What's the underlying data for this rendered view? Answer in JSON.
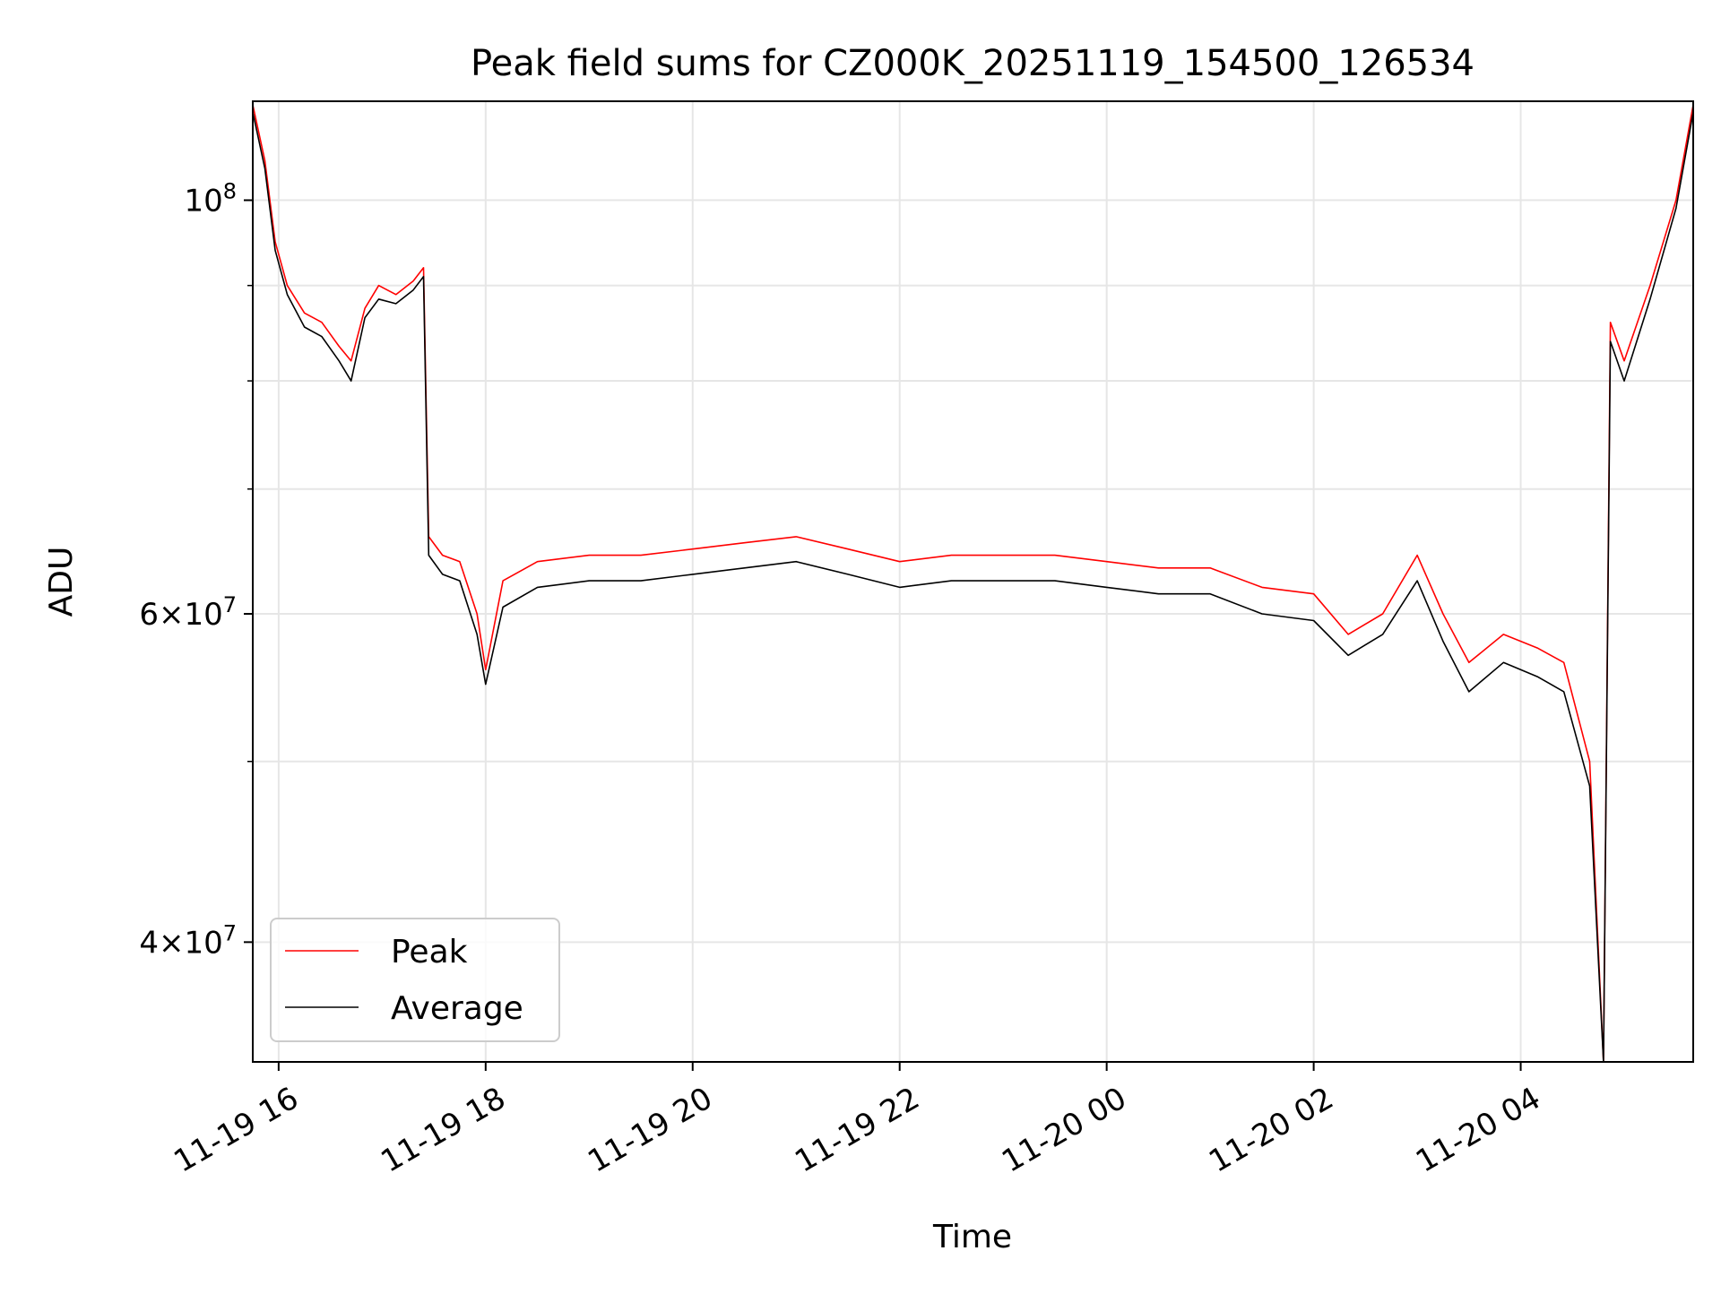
{
  "chart_data": {
    "type": "line",
    "title": "Peak field sums for CZ000K_20251119_154500_126534",
    "xlabel": "Time",
    "ylabel": "ADU",
    "x_axis": {
      "type": "datetime",
      "range": [
        "2025-11-19 15:45",
        "2025-11-20 05:40"
      ],
      "ticks": [
        {
          "value": "2025-11-19 16:00",
          "label": "11-19 16"
        },
        {
          "value": "2025-11-19 18:00",
          "label": "11-19 18"
        },
        {
          "value": "2025-11-19 20:00",
          "label": "11-19 20"
        },
        {
          "value": "2025-11-19 22:00",
          "label": "11-19 22"
        },
        {
          "value": "2025-11-20 00:00",
          "label": "11-20 00"
        },
        {
          "value": "2025-11-20 02:00",
          "label": "11-20 02"
        },
        {
          "value": "2025-11-20 04:00",
          "label": "11-20 04"
        }
      ]
    },
    "y_axis": {
      "scale": "log",
      "range": [
        34500000,
        113000000
      ],
      "major_ticks": [
        {
          "value": 40000000,
          "mant": "4",
          "exp": "7"
        },
        {
          "value": 60000000,
          "mant": "6",
          "exp": "7"
        },
        {
          "value": 100000000,
          "base_exp": "8"
        }
      ],
      "minor_ticks": [
        50000000,
        70000000,
        80000000,
        90000000
      ]
    },
    "grid": true,
    "legend": {
      "position": "lower-left"
    },
    "series": [
      {
        "name": "Peak",
        "color": "#ff0000",
        "points": [
          [
            "2025-11-19 15:45",
            112500000
          ],
          [
            "2025-11-19 15:52",
            105000000
          ],
          [
            "2025-11-19 15:58",
            95000000
          ],
          [
            "2025-11-19 16:05",
            90000000
          ],
          [
            "2025-11-19 16:15",
            87000000
          ],
          [
            "2025-11-19 16:25",
            86000000
          ],
          [
            "2025-11-19 16:35",
            83500000
          ],
          [
            "2025-11-19 16:42",
            82000000
          ],
          [
            "2025-11-19 16:50",
            87500000
          ],
          [
            "2025-11-19 16:58",
            90000000
          ],
          [
            "2025-11-19 17:08",
            89000000
          ],
          [
            "2025-11-19 17:18",
            90500000
          ],
          [
            "2025-11-19 17:24",
            92000000
          ],
          [
            "2025-11-19 17:27",
            66000000
          ],
          [
            "2025-11-19 17:35",
            64500000
          ],
          [
            "2025-11-19 17:45",
            64000000
          ],
          [
            "2025-11-19 17:55",
            60000000
          ],
          [
            "2025-11-19 18:00",
            56000000
          ],
          [
            "2025-11-19 18:10",
            62500000
          ],
          [
            "2025-11-19 18:30",
            64000000
          ],
          [
            "2025-11-19 19:00",
            64500000
          ],
          [
            "2025-11-19 19:30",
            64500000
          ],
          [
            "2025-11-19 20:00",
            65000000
          ],
          [
            "2025-11-19 20:30",
            65500000
          ],
          [
            "2025-11-19 21:00",
            66000000
          ],
          [
            "2025-11-19 21:30",
            65000000
          ],
          [
            "2025-11-19 22:00",
            64000000
          ],
          [
            "2025-11-19 22:30",
            64500000
          ],
          [
            "2025-11-19 23:00",
            64500000
          ],
          [
            "2025-11-19 23:30",
            64500000
          ],
          [
            "2025-11-20 00:00",
            64000000
          ],
          [
            "2025-11-20 00:30",
            63500000
          ],
          [
            "2025-11-20 01:00",
            63500000
          ],
          [
            "2025-11-20 01:30",
            62000000
          ],
          [
            "2025-11-20 02:00",
            61500000
          ],
          [
            "2025-11-20 02:20",
            58500000
          ],
          [
            "2025-11-20 02:40",
            60000000
          ],
          [
            "2025-11-20 03:00",
            64500000
          ],
          [
            "2025-11-20 03:15",
            60000000
          ],
          [
            "2025-11-20 03:30",
            56500000
          ],
          [
            "2025-11-20 03:50",
            58500000
          ],
          [
            "2025-11-20 04:10",
            57500000
          ],
          [
            "2025-11-20 04:25",
            56500000
          ],
          [
            "2025-11-20 04:40",
            50000000
          ],
          [
            "2025-11-20 04:48",
            34500000
          ],
          [
            "2025-11-20 04:52",
            86000000
          ],
          [
            "2025-11-20 05:00",
            82000000
          ],
          [
            "2025-11-20 05:15",
            90000000
          ],
          [
            "2025-11-20 05:30",
            100000000
          ],
          [
            "2025-11-20 05:40",
            112500000
          ]
        ]
      },
      {
        "name": "Average",
        "color": "#000000",
        "points": [
          [
            "2025-11-19 15:45",
            111500000
          ],
          [
            "2025-11-19 15:52",
            104000000
          ],
          [
            "2025-11-19 15:58",
            94000000
          ],
          [
            "2025-11-19 16:05",
            89000000
          ],
          [
            "2025-11-19 16:15",
            85500000
          ],
          [
            "2025-11-19 16:25",
            84500000
          ],
          [
            "2025-11-19 16:35",
            82000000
          ],
          [
            "2025-11-19 16:42",
            80000000
          ],
          [
            "2025-11-19 16:50",
            86500000
          ],
          [
            "2025-11-19 16:58",
            88500000
          ],
          [
            "2025-11-19 17:08",
            88000000
          ],
          [
            "2025-11-19 17:18",
            89500000
          ],
          [
            "2025-11-19 17:24",
            91000000
          ],
          [
            "2025-11-19 17:27",
            64500000
          ],
          [
            "2025-11-19 17:35",
            63000000
          ],
          [
            "2025-11-19 17:45",
            62500000
          ],
          [
            "2025-11-19 17:55",
            58500000
          ],
          [
            "2025-11-19 18:00",
            55000000
          ],
          [
            "2025-11-19 18:10",
            60500000
          ],
          [
            "2025-11-19 18:30",
            62000000
          ],
          [
            "2025-11-19 19:00",
            62500000
          ],
          [
            "2025-11-19 19:30",
            62500000
          ],
          [
            "2025-11-19 20:00",
            63000000
          ],
          [
            "2025-11-19 20:30",
            63500000
          ],
          [
            "2025-11-19 21:00",
            64000000
          ],
          [
            "2025-11-19 21:30",
            63000000
          ],
          [
            "2025-11-19 22:00",
            62000000
          ],
          [
            "2025-11-19 22:30",
            62500000
          ],
          [
            "2025-11-19 23:00",
            62500000
          ],
          [
            "2025-11-19 23:30",
            62500000
          ],
          [
            "2025-11-20 00:00",
            62000000
          ],
          [
            "2025-11-20 00:30",
            61500000
          ],
          [
            "2025-11-20 01:00",
            61500000
          ],
          [
            "2025-11-20 01:30",
            60000000
          ],
          [
            "2025-11-20 02:00",
            59500000
          ],
          [
            "2025-11-20 02:20",
            57000000
          ],
          [
            "2025-11-20 02:40",
            58500000
          ],
          [
            "2025-11-20 03:00",
            62500000
          ],
          [
            "2025-11-20 03:15",
            58000000
          ],
          [
            "2025-11-20 03:30",
            54500000
          ],
          [
            "2025-11-20 03:50",
            56500000
          ],
          [
            "2025-11-20 04:10",
            55500000
          ],
          [
            "2025-11-20 04:25",
            54500000
          ],
          [
            "2025-11-20 04:40",
            48500000
          ],
          [
            "2025-11-20 04:48",
            34500000
          ],
          [
            "2025-11-20 04:52",
            84000000
          ],
          [
            "2025-11-20 05:00",
            80000000
          ],
          [
            "2025-11-20 05:15",
            88500000
          ],
          [
            "2025-11-20 05:30",
            99000000
          ],
          [
            "2025-11-20 05:40",
            111500000
          ]
        ]
      }
    ]
  }
}
